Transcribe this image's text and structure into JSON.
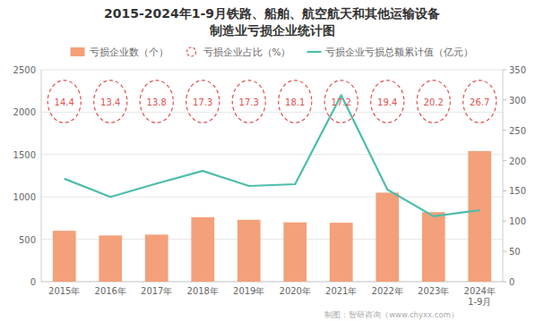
{
  "chart_data": {
    "type": "bar",
    "title": "2015-2024年1-9月铁路、船舶、航空航天和其他运输设备",
    "subtitle": "制造业亏损企业统计图",
    "categories": [
      "2015年",
      "2016年",
      "2017年",
      "2018年",
      "2019年",
      "2020年",
      "2021年",
      "2022年",
      "2023年",
      "2024年\n1-9月"
    ],
    "series": [
      {
        "name": "亏损企业数（个）",
        "type": "bar",
        "color": "#F4A07A",
        "values": [
          600,
          545,
          555,
          760,
          730,
          700,
          695,
          1050,
          820,
          1540
        ]
      },
      {
        "name": "亏损企业占比（%）",
        "type": "text",
        "marker": "ellipse",
        "line_style": "dashed",
        "data_labels": true,
        "color": "#E05050",
        "values": [
          14.4,
          13.4,
          13.8,
          17.3,
          17.3,
          18.1,
          17.2,
          19.4,
          20.2,
          26.7
        ]
      },
      {
        "name": "亏损企业亏损总额累计值（亿元）",
        "type": "line",
        "axis": "y2",
        "color": "#4DBDAA",
        "values": [
          170,
          140,
          162,
          183,
          158,
          161,
          308,
          152,
          108,
          118
        ]
      }
    ],
    "ylim": [
      0,
      2500
    ],
    "yticks": [
      0,
      500,
      1000,
      1500,
      2000,
      2500
    ],
    "y2lim": [
      0,
      350
    ],
    "y2ticks": [
      0,
      50,
      100,
      150,
      200,
      250,
      300,
      350
    ],
    "grid": true,
    "legend": "top",
    "annotations": [
      "制图：智研咨询（www.chyxx.com）"
    ]
  }
}
